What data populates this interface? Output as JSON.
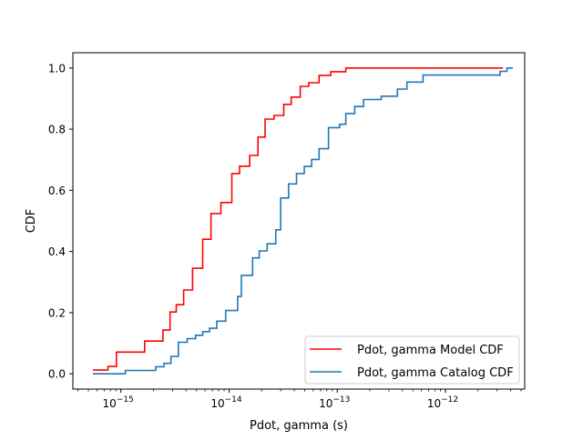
{
  "chart_data": {
    "type": "line",
    "subtype": "step-cdf",
    "xlabel": "Pdot, gamma (s)",
    "ylabel": "CDF",
    "xscale": "log",
    "xlim": [
      3.6e-16,
      5.4e-12
    ],
    "ylim": [
      -0.05,
      1.05
    ],
    "x_ticks": [
      {
        "value": 1e-15,
        "base": "10",
        "exp": "−15"
      },
      {
        "value": 1e-14,
        "base": "10",
        "exp": "−14"
      },
      {
        "value": 1e-13,
        "base": "10",
        "exp": "−13"
      },
      {
        "value": 1e-12,
        "base": "10",
        "exp": "−12"
      }
    ],
    "y_ticks": [
      {
        "value": 0.0,
        "label": "0.0"
      },
      {
        "value": 0.2,
        "label": "0.2"
      },
      {
        "value": 0.4,
        "label": "0.4"
      },
      {
        "value": 0.6,
        "label": "0.6"
      },
      {
        "value": 0.8,
        "label": "0.8"
      },
      {
        "value": 1.0,
        "label": "1.0"
      }
    ],
    "legend_position": "lower-right",
    "series": [
      {
        "name": "Pdot, gamma Model CDF",
        "color": "#ff0000",
        "points": [
          [
            5.5e-16,
            0.012
          ],
          [
            7.6e-16,
            0.024
          ],
          [
            9.1e-16,
            0.071
          ],
          [
            1.66e-15,
            0.107
          ],
          [
            2.45e-15,
            0.143
          ],
          [
            2.85e-15,
            0.202
          ],
          [
            3.25e-15,
            0.226
          ],
          [
            3.8e-15,
            0.274
          ],
          [
            4.6e-15,
            0.345
          ],
          [
            5.7e-15,
            0.44
          ],
          [
            6.8e-15,
            0.524
          ],
          [
            8.4e-15,
            0.56
          ],
          [
            1.06e-14,
            0.655
          ],
          [
            1.25e-14,
            0.679
          ],
          [
            1.55e-14,
            0.714
          ],
          [
            1.85e-14,
            0.774
          ],
          [
            2.15e-14,
            0.833
          ],
          [
            2.6e-14,
            0.845
          ],
          [
            3.2e-14,
            0.881
          ],
          [
            3.75e-14,
            0.905
          ],
          [
            4.55e-14,
            0.94
          ],
          [
            5.45e-14,
            0.952
          ],
          [
            6.8e-14,
            0.976
          ],
          [
            8.7e-14,
            0.988
          ],
          [
            1.2e-13,
            1.0
          ],
          [
            3.4e-12,
            1.0
          ]
        ]
      },
      {
        "name": "Pdot, gamma Catalog CDF",
        "color": "#1f77b4",
        "points": [
          [
            5.5e-16,
            0.0
          ],
          [
            1.1e-15,
            0.011
          ],
          [
            2.1e-15,
            0.023
          ],
          [
            2.5e-15,
            0.034
          ],
          [
            2.9e-15,
            0.057
          ],
          [
            3.4e-15,
            0.103
          ],
          [
            4.1e-15,
            0.115
          ],
          [
            4.9e-15,
            0.126
          ],
          [
            5.7e-15,
            0.138
          ],
          [
            6.6e-15,
            0.149
          ],
          [
            7.7e-15,
            0.172
          ],
          [
            9.3e-15,
            0.207
          ],
          [
            1.2e-14,
            0.253
          ],
          [
            1.3e-14,
            0.322
          ],
          [
            1.65e-14,
            0.379
          ],
          [
            1.9e-14,
            0.402
          ],
          [
            2.25e-14,
            0.425
          ],
          [
            2.7e-14,
            0.471
          ],
          [
            3e-14,
            0.575
          ],
          [
            3.55e-14,
            0.621
          ],
          [
            4.2e-14,
            0.655
          ],
          [
            4.95e-14,
            0.678
          ],
          [
            5.8e-14,
            0.701
          ],
          [
            6.8e-14,
            0.736
          ],
          [
            8.3e-14,
            0.805
          ],
          [
            1.05e-13,
            0.816
          ],
          [
            1.2e-13,
            0.851
          ],
          [
            1.45e-13,
            0.874
          ],
          [
            1.75e-13,
            0.897
          ],
          [
            2.55e-13,
            0.908
          ],
          [
            3.6e-13,
            0.931
          ],
          [
            4.4e-13,
            0.954
          ],
          [
            6.2e-13,
            0.977
          ],
          [
            3.2e-12,
            0.989
          ],
          [
            3.7e-12,
            1.0
          ],
          [
            4.2e-12,
            1.0
          ]
        ]
      }
    ]
  }
}
